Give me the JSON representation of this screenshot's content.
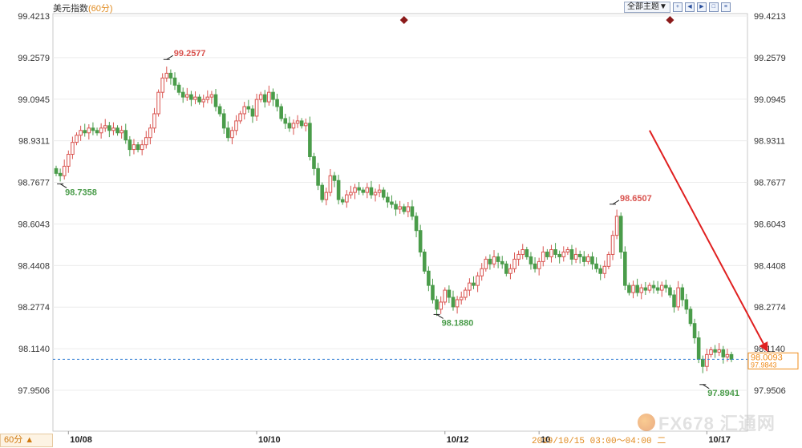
{
  "header": {
    "title": "美元指数",
    "period_tag": "(60分)",
    "theme_select": "全部主题▼",
    "toolbar_icons": [
      "zoom-in-icon",
      "prev-page-icon",
      "next-page-icon",
      "expand-icon",
      "settings-icon"
    ]
  },
  "footer": {
    "period_selector": "60分 ▲",
    "caption": "2019/10/15 03:00～04:00 二",
    "watermark": "FX678 汇通网"
  },
  "colors": {
    "up": "#d9534f",
    "down": "#4a9c4a",
    "grid": "#ececec",
    "arrow": "#e02020",
    "marker": "#8b1a1a",
    "current": "#f08c1a"
  },
  "chart_data": {
    "type": "candlestick",
    "ylim": [
      97.87,
      99.44
    ],
    "y_ticks": [
      "99.4213",
      "99.2579",
      "99.0945",
      "98.9311",
      "98.7677",
      "98.6043",
      "98.4408",
      "98.2774",
      "98.1140",
      "97.9506"
    ],
    "x_ticks": [
      {
        "label": "10/08",
        "index": 3
      },
      {
        "label": "10/10",
        "index": 49
      },
      {
        "label": "10/12",
        "index": 95
      },
      {
        "label": "10",
        "index": 118
      },
      {
        "label": "10/17",
        "index": 159
      }
    ],
    "current_price": "98.0093",
    "prev_close": "97.9843",
    "current_level": 98.0,
    "annotations": [
      {
        "text": "99.2577",
        "index": 27,
        "value": 99.2577,
        "kind": "high"
      },
      {
        "text": "98.7358",
        "index": 1,
        "value": 98.7358,
        "kind": "low"
      },
      {
        "text": "98.1880",
        "index": 93,
        "value": 98.188,
        "kind": "low"
      },
      {
        "text": "98.6507",
        "index": 136,
        "value": 98.6507,
        "kind": "high"
      },
      {
        "text": "97.8941",
        "index": 158,
        "value": 97.8941,
        "kind": "low"
      }
    ],
    "event_markers": [
      {
        "index": 85
      },
      {
        "index": 150
      }
    ],
    "trend_arrow": {
      "from": {
        "index": 145,
        "value": 98.96
      },
      "to": {
        "index": 170,
        "value": 98.01
      }
    },
    "close": [
      98.78,
      98.77,
      98.81,
      98.86,
      98.91,
      98.94,
      98.96,
      98.95,
      98.97,
      98.96,
      98.95,
      98.97,
      98.98,
      98.96,
      98.97,
      98.95,
      98.96,
      98.92,
      98.88,
      98.9,
      98.88,
      98.9,
      98.93,
      98.97,
      99.03,
      99.12,
      99.18,
      99.2,
      99.18,
      99.15,
      99.12,
      99.1,
      99.11,
      99.09,
      99.1,
      99.08,
      99.09,
      99.1,
      99.11,
      99.06,
      99.03,
      98.97,
      98.93,
      98.96,
      99.0,
      99.03,
      99.06,
      99.05,
      99.02,
      99.09,
      99.11,
      99.08,
      99.12,
      99.09,
      99.06,
      99.01,
      98.99,
      98.97,
      98.99,
      99.0,
      98.98,
      98.99,
      98.85,
      98.8,
      98.73,
      98.67,
      98.7,
      98.77,
      98.75,
      98.67,
      98.66,
      98.69,
      98.7,
      98.72,
      98.71,
      98.7,
      98.72,
      98.69,
      98.7,
      98.71,
      98.68,
      98.66,
      98.65,
      98.63,
      98.64,
      98.62,
      98.64,
      98.6,
      98.54,
      98.45,
      98.37,
      98.31,
      98.25,
      98.21,
      98.24,
      98.29,
      98.26,
      98.22,
      98.25,
      98.26,
      98.29,
      98.32,
      98.31,
      98.35,
      98.38,
      98.42,
      98.4,
      98.43,
      98.41,
      98.4,
      98.36,
      98.38,
      98.42,
      98.44,
      98.46,
      98.43,
      98.4,
      98.38,
      98.41,
      98.45,
      98.43,
      98.46,
      98.44,
      98.43,
      98.45,
      98.46,
      98.42,
      98.44,
      98.43,
      98.41,
      98.43,
      98.4,
      98.38,
      98.36,
      98.39,
      98.44,
      98.52,
      98.6,
      98.45,
      98.31,
      98.28,
      98.31,
      98.28,
      98.3,
      98.29,
      98.31,
      98.3,
      98.29,
      98.31,
      98.3,
      98.27,
      98.22,
      98.3,
      98.25,
      98.21,
      98.15,
      98.09,
      98.0,
      97.97,
      98.02,
      98.04,
      98.03,
      98.04,
      98.01,
      98.02,
      98.0
    ],
    "first_open": 98.8
  }
}
